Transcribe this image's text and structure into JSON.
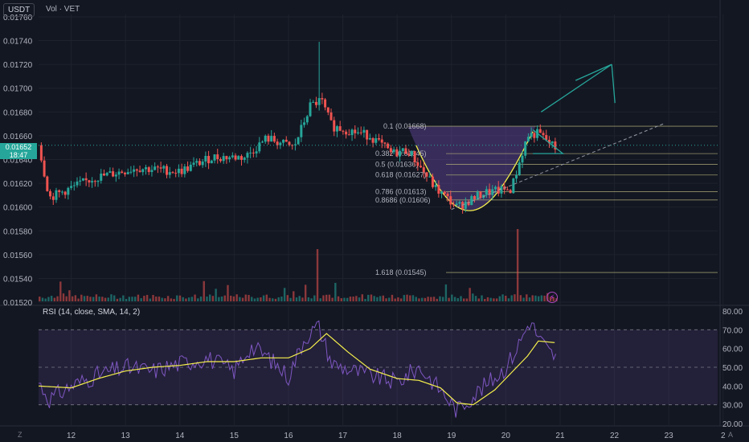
{
  "header": {
    "currency": "USDT",
    "volume_label": "Vol · VET"
  },
  "rsi_label": "RSI (14, close, SMA, 14, 2)",
  "last_price": {
    "value": "0.01652",
    "countdown": "18:47"
  },
  "corner_left": "Z",
  "corner_right": "A",
  "colors": {
    "up": "#26a69a",
    "down": "#ef5350",
    "rsi": "#7e57c2",
    "rsi_ma": "#f5f04c",
    "fib": "#b5b37a",
    "cup": "#7e57c2"
  },
  "chart_data": [
    {
      "type": "candlestick",
      "title": "",
      "price_axis_ticks": [
        "0.01760",
        "0.01740",
        "0.01720",
        "0.01700",
        "0.01680",
        "0.01660",
        "0.01640",
        "0.01620",
        "0.01600",
        "0.01580",
        "0.01560",
        "0.01540",
        "0.01520"
      ],
      "ylim": [
        0.01518,
        0.01762
      ],
      "x_ticks": [
        "12",
        "13",
        "14",
        "15",
        "16",
        "17",
        "18",
        "19",
        "20",
        "21",
        "22",
        "23",
        "2"
      ],
      "last_price": 0.01652,
      "key_points": [
        {
          "day": 11.4,
          "price": 0.01652
        },
        {
          "day": 11.6,
          "price": 0.01608
        },
        {
          "day": 12.4,
          "price": 0.01624
        },
        {
          "day": 13.2,
          "price": 0.01633
        },
        {
          "day": 14.0,
          "price": 0.0163
        },
        {
          "day": 14.6,
          "price": 0.01642
        },
        {
          "day": 15.2,
          "price": 0.01642
        },
        {
          "day": 15.6,
          "price": 0.01658
        },
        {
          "day": 16.1,
          "price": 0.0165
        },
        {
          "day": 16.4,
          "price": 0.01685
        },
        {
          "day": 16.6,
          "price": 0.0169
        },
        {
          "day": 16.8,
          "price": 0.01668
        },
        {
          "day": 17.5,
          "price": 0.0166
        },
        {
          "day": 17.9,
          "price": 0.01645
        },
        {
          "day": 18.2,
          "price": 0.01648
        },
        {
          "day": 18.7,
          "price": 0.01616
        },
        {
          "day": 19.1,
          "price": 0.016
        },
        {
          "day": 19.6,
          "price": 0.01612
        },
        {
          "day": 20.1,
          "price": 0.01615
        },
        {
          "day": 20.4,
          "price": 0.0166
        },
        {
          "day": 20.6,
          "price": 0.01662
        },
        {
          "day": 20.95,
          "price": 0.01648
        }
      ],
      "fib_levels": [
        {
          "label": "0.1 (0.01668)",
          "price": 0.01668
        },
        {
          "label": "0.382 (0.01645)",
          "price": 0.01645
        },
        {
          "label": "0.5 (0.01636)",
          "price": 0.01636
        },
        {
          "label": "0.618 (0.01627)",
          "price": 0.01627
        },
        {
          "label": "0.786 (0.01613)",
          "price": 0.01613
        },
        {
          "label": "0.8686 (0.01606)",
          "price": 0.01606
        },
        {
          "label": "1.618 (0.01545)",
          "price": 0.01545
        }
      ],
      "trendline": [
        {
          "day": 19.0,
          "price": 0.01598
        },
        {
          "day": 22.9,
          "price": 0.0167
        }
      ],
      "triangle": [
        {
          "day": 20.5,
          "price": 0.01665
        },
        {
          "day": 21.05,
          "price": 0.01645
        },
        {
          "day": 20.5,
          "price": 0.01645
        }
      ],
      "target_arrow": [
        {
          "day": 20.65,
          "price": 0.0168
        },
        {
          "day": 21.95,
          "price": 0.0172
        }
      ]
    },
    {
      "type": "line",
      "title": "",
      "y_ticks": [
        "80.00",
        "70.00",
        "60.00",
        "50.00",
        "40.00",
        "30.00",
        "20.00"
      ],
      "ylim": [
        20,
        80
      ],
      "bands": [
        70,
        50,
        30
      ],
      "rsi_points": [
        {
          "day": 11.4,
          "value": 42
        },
        {
          "day": 11.6,
          "value": 33
        },
        {
          "day": 12.0,
          "value": 40
        },
        {
          "day": 12.5,
          "value": 46
        },
        {
          "day": 13.0,
          "value": 50
        },
        {
          "day": 13.5,
          "value": 48
        },
        {
          "day": 14.0,
          "value": 52
        },
        {
          "day": 14.5,
          "value": 55
        },
        {
          "day": 15.0,
          "value": 48
        },
        {
          "day": 15.3,
          "value": 61
        },
        {
          "day": 15.6,
          "value": 56
        },
        {
          "day": 16.0,
          "value": 45
        },
        {
          "day": 16.3,
          "value": 66
        },
        {
          "day": 16.55,
          "value": 72
        },
        {
          "day": 16.8,
          "value": 52
        },
        {
          "day": 17.2,
          "value": 48
        },
        {
          "day": 17.6,
          "value": 45
        },
        {
          "day": 18.0,
          "value": 42
        },
        {
          "day": 18.4,
          "value": 50
        },
        {
          "day": 18.8,
          "value": 38
        },
        {
          "day": 19.1,
          "value": 27
        },
        {
          "day": 19.4,
          "value": 35
        },
        {
          "day": 19.7,
          "value": 42
        },
        {
          "day": 20.0,
          "value": 50
        },
        {
          "day": 20.2,
          "value": 60
        },
        {
          "day": 20.45,
          "value": 75
        },
        {
          "day": 20.6,
          "value": 66
        },
        {
          "day": 20.8,
          "value": 58
        },
        {
          "day": 20.95,
          "value": 55
        }
      ],
      "rsi_ma_points": [
        {
          "day": 11.4,
          "value": 40
        },
        {
          "day": 12.0,
          "value": 39
        },
        {
          "day": 12.5,
          "value": 44
        },
        {
          "day": 13.0,
          "value": 48
        },
        {
          "day": 13.5,
          "value": 50
        },
        {
          "day": 14.0,
          "value": 51
        },
        {
          "day": 14.5,
          "value": 53
        },
        {
          "day": 15.0,
          "value": 53
        },
        {
          "day": 15.5,
          "value": 55
        },
        {
          "day": 16.0,
          "value": 55
        },
        {
          "day": 16.4,
          "value": 60
        },
        {
          "day": 16.7,
          "value": 68
        },
        {
          "day": 17.1,
          "value": 58
        },
        {
          "day": 17.5,
          "value": 49
        },
        {
          "day": 18.0,
          "value": 44
        },
        {
          "day": 18.4,
          "value": 43
        },
        {
          "day": 18.8,
          "value": 39
        },
        {
          "day": 19.1,
          "value": 31
        },
        {
          "day": 19.4,
          "value": 30
        },
        {
          "day": 19.8,
          "value": 38
        },
        {
          "day": 20.1,
          "value": 47
        },
        {
          "day": 20.4,
          "value": 56
        },
        {
          "day": 20.6,
          "value": 64
        },
        {
          "day": 20.95,
          "value": 63
        }
      ]
    }
  ]
}
